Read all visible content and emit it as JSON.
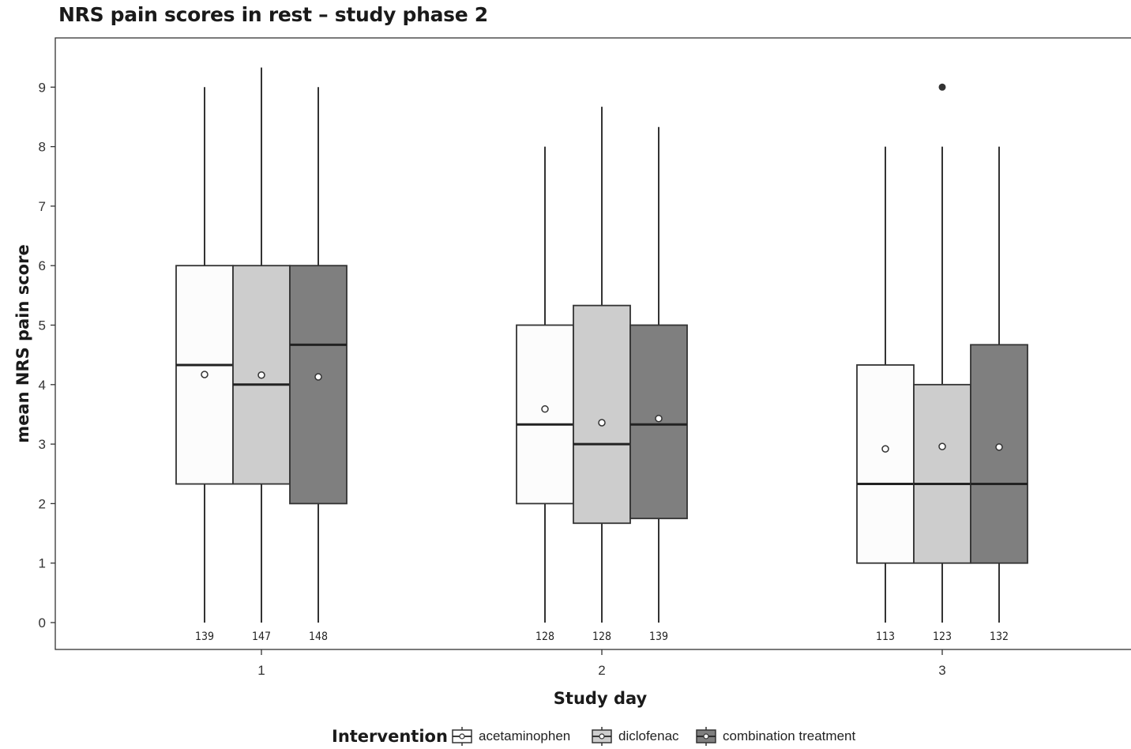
{
  "chart_data": {
    "type": "boxplot",
    "title": "NRS pain scores in rest – study phase 2",
    "xlabel": "Study day",
    "ylabel": "mean NRS pain score",
    "ylim": [
      -0.45,
      10.0
    ],
    "yticks": [
      0,
      1,
      2,
      3,
      4,
      5,
      6,
      7,
      8,
      9
    ],
    "categories": [
      "1",
      "2",
      "3"
    ],
    "legend": {
      "title": "Intervention",
      "position": "bottom",
      "entries": [
        "acetaminophen",
        "diclofenac",
        "combination treatment"
      ]
    },
    "grid": false,
    "series": [
      {
        "name": "acetaminophen",
        "color": "#fcfcfc",
        "boxes": [
          {
            "day": "1",
            "min": 0,
            "q1": 2.33,
            "median": 4.33,
            "q3": 6.0,
            "max": 9.0,
            "mean": 4.17,
            "n": "139",
            "outliers": []
          },
          {
            "day": "2",
            "min": 0,
            "q1": 2.0,
            "median": 3.33,
            "q3": 5.0,
            "max": 8.0,
            "mean": 3.59,
            "n": "128",
            "outliers": []
          },
          {
            "day": "3",
            "min": 0,
            "q1": 1.0,
            "median": 2.33,
            "q3": 4.33,
            "max": 8.0,
            "mean": 2.92,
            "n": "113",
            "outliers": []
          }
        ]
      },
      {
        "name": "diclofenac",
        "color": "#cdcdcd",
        "boxes": [
          {
            "day": "1",
            "min": 0,
            "q1": 2.33,
            "median": 4.0,
            "q3": 6.0,
            "max": 9.33,
            "mean": 4.16,
            "n": "147",
            "outliers": []
          },
          {
            "day": "2",
            "min": 0,
            "q1": 1.67,
            "median": 3.0,
            "q3": 5.33,
            "max": 8.67,
            "mean": 3.36,
            "n": "128",
            "outliers": []
          },
          {
            "day": "3",
            "min": 0,
            "q1": 1.0,
            "median": 2.33,
            "q3": 4.0,
            "max": 8.0,
            "mean": 2.96,
            "n": "123",
            "outliers": [
              9.0
            ]
          }
        ]
      },
      {
        "name": "combination treatment",
        "color": "#7f7f7f",
        "boxes": [
          {
            "day": "1",
            "min": 0,
            "q1": 2.0,
            "median": 4.67,
            "q3": 6.0,
            "max": 9.0,
            "mean": 4.13,
            "n": "148",
            "outliers": []
          },
          {
            "day": "2",
            "min": 0,
            "q1": 1.75,
            "median": 3.33,
            "q3": 5.0,
            "max": 8.33,
            "mean": 3.43,
            "n": "139",
            "outliers": []
          },
          {
            "day": "3",
            "min": 0,
            "q1": 1.0,
            "median": 2.33,
            "q3": 4.67,
            "max": 8.0,
            "mean": 2.95,
            "n": "132",
            "outliers": []
          }
        ]
      }
    ]
  }
}
